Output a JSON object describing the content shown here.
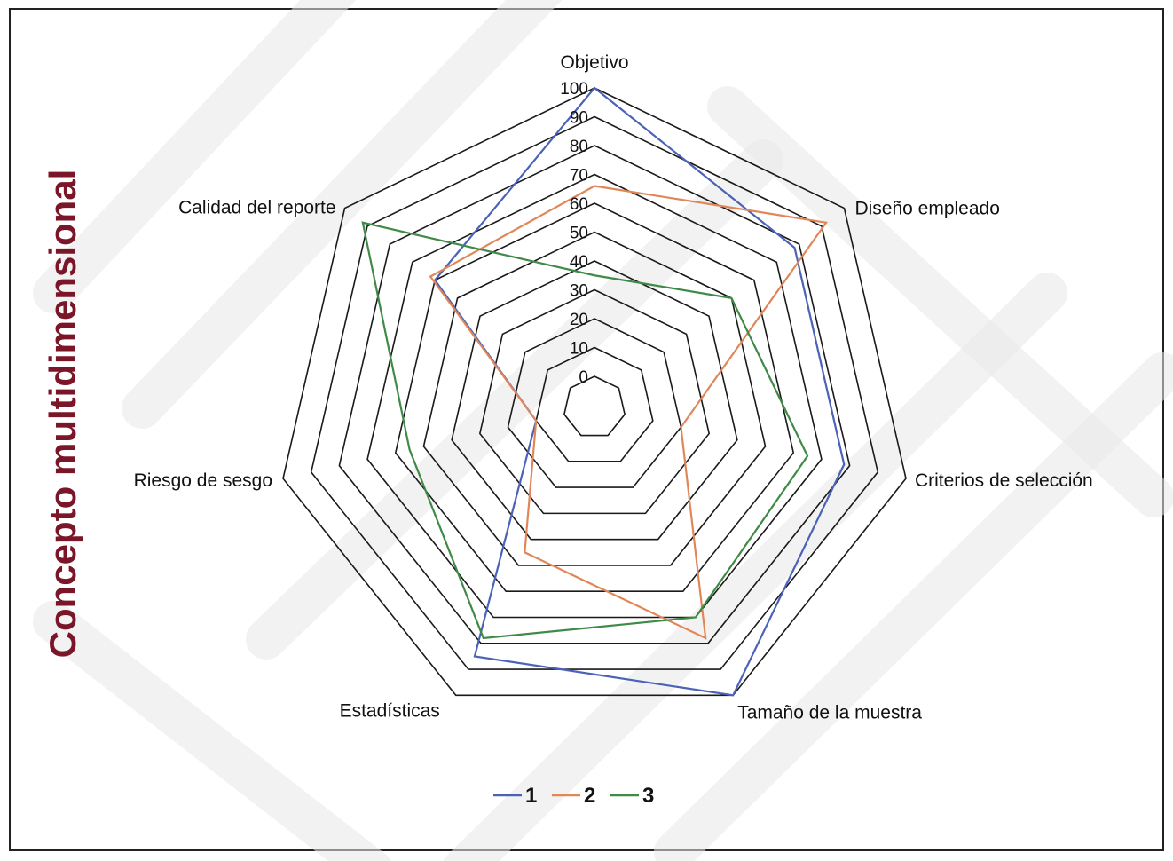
{
  "side_title": "Concepto multidimensional",
  "colors": {
    "side_title": "#7a1628",
    "grid": "#1a1a1a",
    "frame": "#222222",
    "watermark": "#e9e9e9"
  },
  "chart_data": {
    "type": "radar",
    "title": "",
    "categories": [
      "Objetivo",
      "Diseño empleado",
      "Criterios de selección",
      "Tamaño de la muestra",
      "Estadísticas",
      "Riesgo de sesgo",
      "Calidad del reporte"
    ],
    "rlim": [
      0,
      100
    ],
    "ticks": [
      0,
      10,
      20,
      30,
      40,
      50,
      60,
      70,
      80,
      90,
      100
    ],
    "tick_labels": [
      "0",
      "10",
      "20",
      "30",
      "40",
      "50",
      "60",
      "70",
      "80",
      "90",
      "100"
    ],
    "grid": true,
    "legend_position": "bottom",
    "series": [
      {
        "name": "1",
        "color": "#4a62b8",
        "values": [
          100,
          78,
          78,
          100,
          85,
          10,
          60
        ]
      },
      {
        "name": "2",
        "color": "#e0875a",
        "values": [
          66,
          92,
          20,
          78,
          45,
          10,
          62
        ]
      },
      {
        "name": "3",
        "color": "#3f8a46",
        "values": [
          35,
          50,
          65,
          70,
          78,
          55,
          92
        ]
      }
    ]
  }
}
